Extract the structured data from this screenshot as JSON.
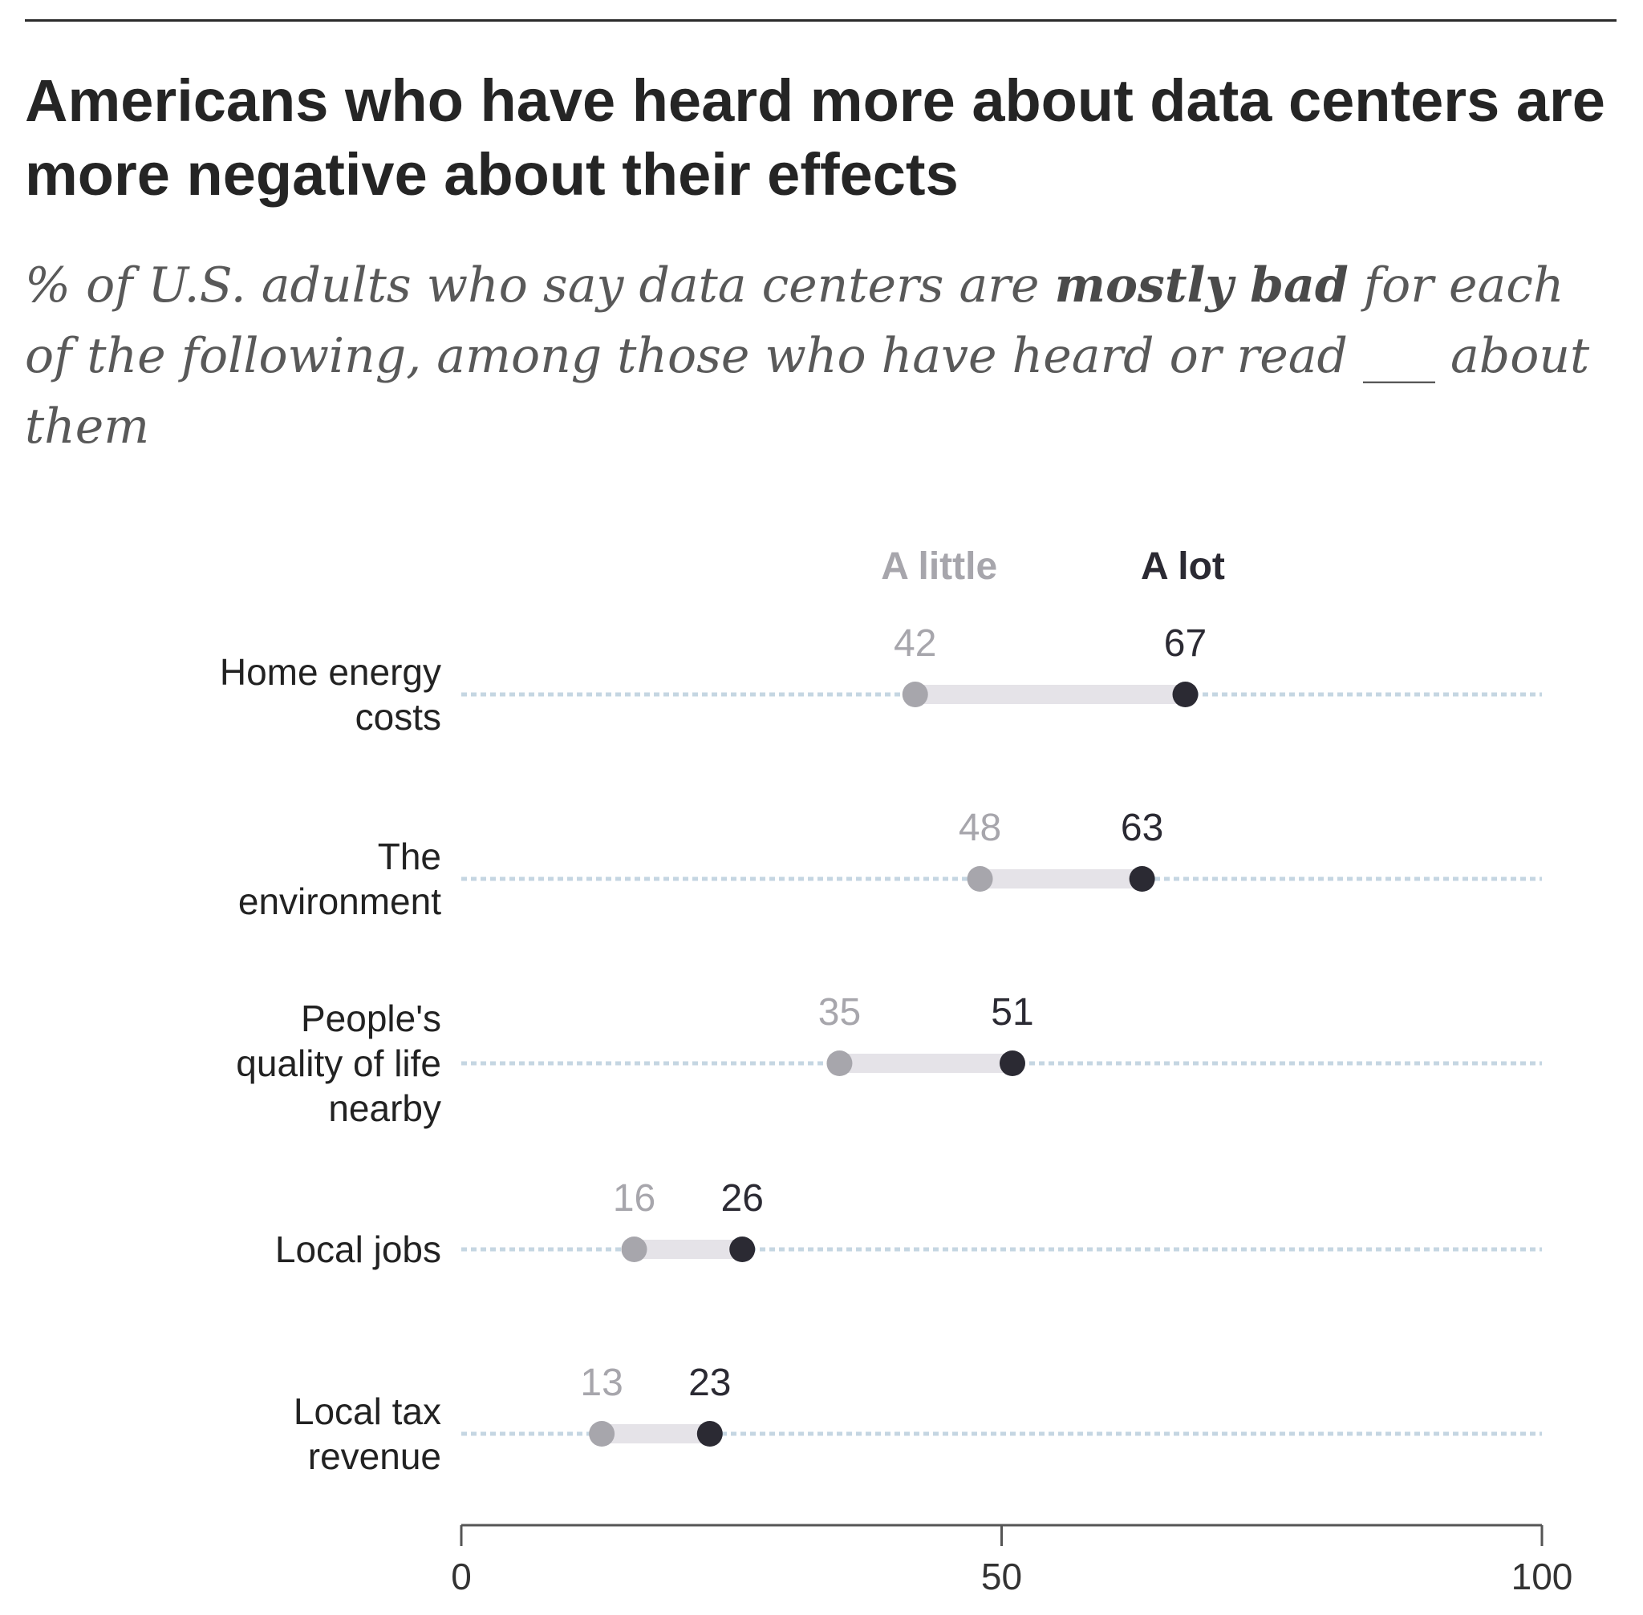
{
  "title": "Americans who have heard more about data centers are more negative about their effects",
  "subtitle": {
    "before": "% of U.S. adults who say data centers are ",
    "emphasis": "mostly bad",
    "after": " for each of the following, among those who have heard or read ___ about them"
  },
  "colors": {
    "little": "#a7a6ac",
    "lot": "#2b2a33",
    "range": "#e5e3e8",
    "guide": "#c5d6e2",
    "axis": "#555555"
  },
  "chart_data": {
    "type": "dot-range",
    "series": [
      {
        "name": "A little",
        "values": [
          42,
          48,
          35,
          16,
          13
        ]
      },
      {
        "name": "A lot",
        "values": [
          67,
          63,
          51,
          26,
          23
        ]
      }
    ],
    "categories": [
      [
        "Home energy",
        "costs"
      ],
      [
        "The",
        "environment"
      ],
      [
        "People's",
        "quality of life",
        "nearby"
      ],
      [
        "Local jobs"
      ],
      [
        "Local tax",
        "revenue"
      ]
    ],
    "xlim": [
      0,
      100
    ],
    "xticks": [
      0,
      50,
      100
    ]
  }
}
